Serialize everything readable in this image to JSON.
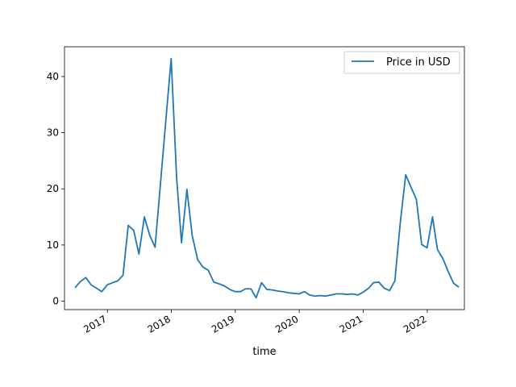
{
  "chart_data": {
    "type": "line",
    "title": "",
    "xlabel": "time",
    "ylabel": "",
    "xlim": [
      "2016-05-01",
      "2022-08-01"
    ],
    "ylim": [
      -1.5,
      45.3
    ],
    "grid": false,
    "legend_placement": "top-right",
    "x_ticks": [
      {
        "value": "2017-01-01",
        "label": "2017"
      },
      {
        "value": "2018-01-01",
        "label": "2018"
      },
      {
        "value": "2019-01-01",
        "label": "2019"
      },
      {
        "value": "2020-01-01",
        "label": "2020"
      },
      {
        "value": "2021-01-01",
        "label": "2021"
      },
      {
        "value": "2022-01-01",
        "label": "2022"
      }
    ],
    "y_ticks": [
      0,
      10,
      20,
      30,
      40
    ],
    "series": [
      {
        "name": "Price in USD",
        "color": "#1f77b4",
        "points": [
          [
            "2016-06-30",
            2.4
          ],
          [
            "2016-07-31",
            3.5
          ],
          [
            "2016-08-31",
            4.2
          ],
          [
            "2016-09-30",
            2.9
          ],
          [
            "2016-10-31",
            2.3
          ],
          [
            "2016-11-30",
            1.7
          ],
          [
            "2016-12-31",
            2.9
          ],
          [
            "2017-01-31",
            3.3
          ],
          [
            "2017-02-28",
            3.6
          ],
          [
            "2017-03-31",
            4.6
          ],
          [
            "2017-04-30",
            13.5
          ],
          [
            "2017-05-31",
            12.6
          ],
          [
            "2017-06-30",
            8.4
          ],
          [
            "2017-07-31",
            15.0
          ],
          [
            "2017-08-31",
            11.7
          ],
          [
            "2017-09-30",
            9.6
          ],
          [
            "2017-10-31",
            21.0
          ],
          [
            "2017-11-30",
            32.0
          ],
          [
            "2017-12-31",
            43.2
          ],
          [
            "2018-01-31",
            22.0
          ],
          [
            "2018-02-28",
            10.4
          ],
          [
            "2018-03-31",
            19.9
          ],
          [
            "2018-04-30",
            11.7
          ],
          [
            "2018-05-31",
            7.4
          ],
          [
            "2018-06-30",
            6.1
          ],
          [
            "2018-07-31",
            5.5
          ],
          [
            "2018-08-31",
            3.4
          ],
          [
            "2018-09-30",
            3.1
          ],
          [
            "2018-10-31",
            2.7
          ],
          [
            "2018-11-30",
            2.1
          ],
          [
            "2018-12-31",
            1.7
          ],
          [
            "2019-01-31",
            1.7
          ],
          [
            "2019-02-28",
            2.2
          ],
          [
            "2019-03-31",
            2.2
          ],
          [
            "2019-04-30",
            0.6
          ],
          [
            "2019-05-31",
            3.3
          ],
          [
            "2019-06-30",
            2.1
          ],
          [
            "2019-07-31",
            2.0
          ],
          [
            "2019-08-31",
            1.8
          ],
          [
            "2019-09-30",
            1.7
          ],
          [
            "2019-10-31",
            1.5
          ],
          [
            "2019-11-30",
            1.4
          ],
          [
            "2019-12-31",
            1.3
          ],
          [
            "2020-01-31",
            1.7
          ],
          [
            "2020-02-29",
            1.1
          ],
          [
            "2020-03-31",
            0.9
          ],
          [
            "2020-04-30",
            1.0
          ],
          [
            "2020-05-31",
            0.9
          ],
          [
            "2020-06-30",
            1.1
          ],
          [
            "2020-07-31",
            1.3
          ],
          [
            "2020-08-31",
            1.3
          ],
          [
            "2020-09-30",
            1.2
          ],
          [
            "2020-10-31",
            1.3
          ],
          [
            "2020-11-30",
            1.1
          ],
          [
            "2020-12-31",
            1.6
          ],
          [
            "2021-01-31",
            2.3
          ],
          [
            "2021-02-28",
            3.3
          ],
          [
            "2021-03-31",
            3.4
          ],
          [
            "2021-04-30",
            2.3
          ],
          [
            "2021-05-31",
            1.9
          ],
          [
            "2021-06-30",
            3.6
          ],
          [
            "2021-07-31",
            14.0
          ],
          [
            "2021-08-31",
            22.5
          ],
          [
            "2021-09-30",
            20.3
          ],
          [
            "2021-10-31",
            18.1
          ],
          [
            "2021-11-30",
            10.1
          ],
          [
            "2021-12-31",
            9.5
          ],
          [
            "2022-01-31",
            15.0
          ],
          [
            "2022-02-28",
            9.2
          ],
          [
            "2022-03-31",
            7.6
          ],
          [
            "2022-04-30",
            5.3
          ],
          [
            "2022-05-31",
            3.2
          ],
          [
            "2022-06-30",
            2.5
          ]
        ]
      }
    ]
  }
}
